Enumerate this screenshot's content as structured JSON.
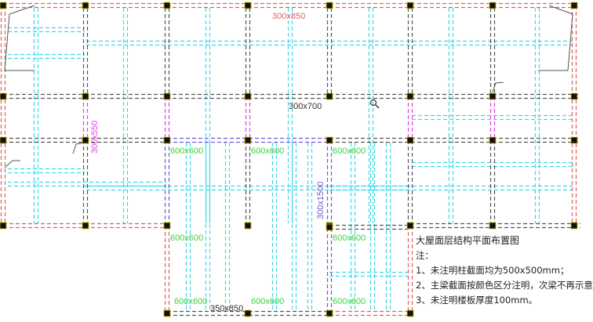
{
  "drawing": {
    "beam_labels": {
      "top_edge": "300x850",
      "middle_row": "300x700",
      "left_vertical": "300x550",
      "tall_vertical": "300x1500",
      "bottom_edge": "350x850",
      "column_section": "600x600"
    },
    "colors": {
      "background": "#ffffff",
      "column": "#111111",
      "column_outline": "#d8c400",
      "gray_beam": "#555555",
      "red_beam": "#e06060",
      "magenta_beam": "#e040e0",
      "blue_beam": "#6a5cd8",
      "secondary_beam": "#40d8e8",
      "green_label": "#40d040"
    }
  },
  "notes": {
    "title": "大屋面层结构平面布置图",
    "heading": "注：",
    "items": [
      "1、未注明柱截面均为500x500mm；",
      "2、主梁截面按颜色区分注明，次梁不再示意",
      "3、未注明楼板厚度100mm。"
    ]
  },
  "cursor_icon": "magnifier-icon"
}
